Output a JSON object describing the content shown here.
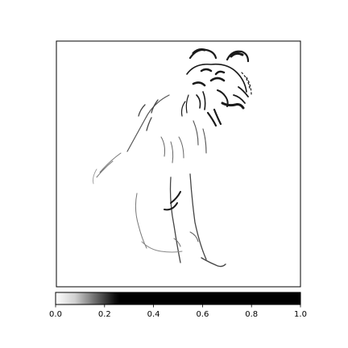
{
  "chart_data": {
    "type": "heatmap",
    "title": "",
    "xlabel": "",
    "ylabel": "",
    "image_description": "grayscale saliency map highlighting the edges of a tiger (head and ears at upper right, body and legs below); background mostly white",
    "axes_ticks_visible": false,
    "colormap": {
      "range": [
        0,
        1
      ],
      "ticks": [
        "0.0",
        "0.2",
        "0.4",
        "0.6",
        "0.8",
        "1.0"
      ],
      "tick_values": [
        0.0,
        0.2,
        0.4,
        0.6,
        0.8,
        1.0
      ],
      "color_stops": [
        {
          "value": 0.0,
          "color": "#ffffff"
        },
        {
          "value": 0.08,
          "color": "#d0d0d0"
        },
        {
          "value": 0.16,
          "color": "#6e6e6e"
        },
        {
          "value": 0.24,
          "color": "#101010"
        },
        {
          "value": 0.26,
          "color": "#000000"
        },
        {
          "value": 1.0,
          "color": "#000000"
        }
      ],
      "orientation": "horizontal",
      "placement": "bottom"
    }
  },
  "colors": {
    "background": "#ffffff",
    "frame": "#000000",
    "ink": "#1a1a1a"
  }
}
